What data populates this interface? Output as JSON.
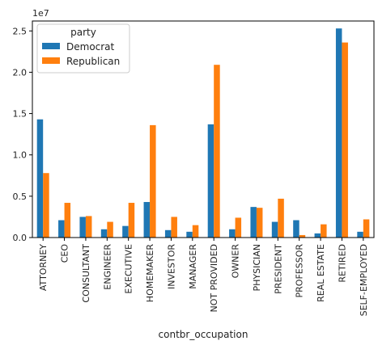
{
  "chart_data": {
    "type": "bar",
    "title": "",
    "xlabel": "contbr_occupation",
    "ylabel": "",
    "y_scale_label": "1e7",
    "ylim": [
      0,
      2.62
    ],
    "yticks": [
      0.0,
      0.5,
      1.0,
      1.5,
      2.0,
      2.5
    ],
    "ytick_labels": [
      "0.0",
      "0.5",
      "1.0",
      "1.5",
      "2.0",
      "2.5"
    ],
    "grid": false,
    "categories": [
      "ATTORNEY",
      "CEO",
      "CONSULTANT",
      "ENGINEER",
      "EXECUTIVE",
      "HOMEMAKER",
      "INVESTOR",
      "MANAGER",
      "NOT PROVIDED",
      "OWNER",
      "PHYSICIAN",
      "PRESIDENT",
      "PROFESSOR",
      "REAL ESTATE",
      "RETIRED",
      "SELF-EMPLOYED"
    ],
    "legend": {
      "title": "party",
      "placement": "top-left"
    },
    "series": [
      {
        "name": "Democrat",
        "color": "#1f77b4",
        "values": [
          1.43,
          0.21,
          0.25,
          0.1,
          0.14,
          0.43,
          0.09,
          0.07,
          1.37,
          0.1,
          0.37,
          0.19,
          0.21,
          0.05,
          2.53,
          0.07
        ]
      },
      {
        "name": "Republican",
        "color": "#ff7f0e",
        "values": [
          0.78,
          0.42,
          0.26,
          0.19,
          0.42,
          1.36,
          0.25,
          0.15,
          2.09,
          0.24,
          0.36,
          0.47,
          0.03,
          0.16,
          2.36,
          0.22
        ]
      }
    ]
  }
}
